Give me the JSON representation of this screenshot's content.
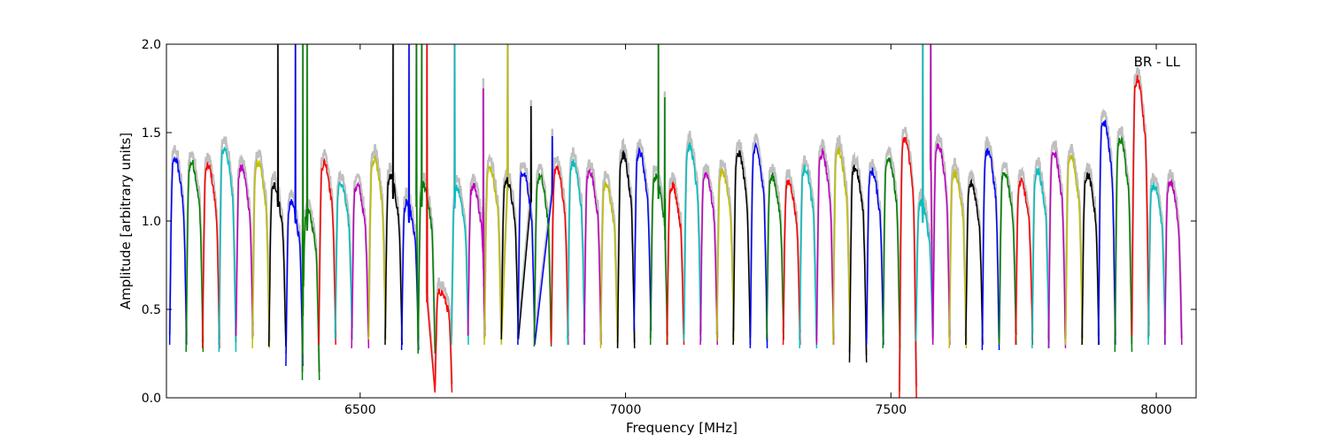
{
  "chart_data": {
    "type": "line",
    "annotation": "BR - LL",
    "xlabel": "Frequency [MHz]",
    "ylabel": "Amplitude [arbitrary units]",
    "xlim": [
      6135,
      8075
    ],
    "ylim": [
      0,
      2.0
    ],
    "xticks": [
      6500,
      7000,
      7500,
      8000
    ],
    "xtick_labels": [
      "6500",
      "7000",
      "7500",
      "8000"
    ],
    "yticks": [
      0.0,
      0.5,
      1.0,
      1.5,
      2.0
    ],
    "ytick_labels": [
      "0.0",
      "0.5",
      "1.0",
      "1.5",
      "2.0"
    ],
    "grid": false,
    "background_series_color": "#bfbfbf",
    "color_cycle": [
      "#0000ff",
      "#008000",
      "#ff0000",
      "#00bfbf",
      "#bf00bf",
      "#bfbf00",
      "#000000"
    ],
    "band_width_mhz": 32,
    "band_centers_mhz": [
      6157,
      6188,
      6219,
      6250,
      6282,
      6313,
      6344,
      6376,
      6407,
      6438,
      6469,
      6500,
      6532,
      6563,
      6594,
      6625,
      6657,
      6688,
      6719,
      6750,
      6782,
      6813,
      6844,
      6876,
      6907,
      6938,
      6969,
      7001,
      7032,
      7063,
      7094,
      7126,
      7157,
      7188,
      7219,
      7251,
      7282,
      7313,
      7344,
      7376,
      7407,
      7438,
      7470,
      7501,
      7532,
      7563,
      7595,
      7626,
      7657,
      7688,
      7720,
      7751,
      7782,
      7813,
      7845,
      7876,
      7907,
      7938,
      7970,
      8001,
      8032
    ],
    "band_peaks": [
      1.35,
      1.33,
      1.31,
      1.41,
      1.3,
      1.33,
      1.2,
      1.1,
      1.05,
      1.33,
      1.21,
      1.2,
      1.35,
      1.25,
      1.1,
      1.2,
      0.6,
      1.19,
      1.2,
      1.3,
      1.23,
      1.28,
      1.25,
      1.3,
      1.33,
      1.28,
      1.2,
      1.37,
      1.39,
      1.25,
      1.2,
      1.42,
      1.27,
      1.28,
      1.38,
      1.41,
      1.25,
      1.22,
      1.3,
      1.38,
      1.4,
      1.3,
      1.28,
      1.36,
      1.46,
      1.1,
      1.43,
      1.27,
      1.21,
      1.4,
      1.27,
      1.22,
      1.28,
      1.38,
      1.36,
      1.26,
      1.56,
      1.46,
      1.8,
      1.2,
      1.22
    ],
    "band_mins": [
      0.3,
      0.26,
      0.28,
      0.26,
      0.35,
      0.28,
      0.29,
      0.18,
      0.1,
      0.3,
      0.33,
      0.28,
      0.33,
      0.3,
      0.27,
      0.25,
      0.03,
      0.3,
      0.35,
      0.3,
      0.33,
      0.3,
      0.29,
      0.3,
      0.3,
      0.3,
      0.28,
      0.28,
      0.38,
      0.3,
      0.3,
      0.32,
      0.3,
      0.32,
      0.3,
      0.28,
      0.33,
      0.3,
      0.28,
      0.3,
      0.3,
      0.2,
      0.3,
      0.28,
      0.0,
      0.32,
      0.3,
      0.28,
      0.3,
      0.27,
      0.3,
      0.3,
      0.28,
      0.28,
      0.3,
      0.3,
      0.3,
      0.26,
      0.35,
      0.3,
      0.3
    ],
    "spikes": [
      {
        "x": 6345,
        "y": 2.0,
        "band": 6
      },
      {
        "x": 6378,
        "y": 2.0,
        "band": 7
      },
      {
        "x": 6392,
        "y": 2.0,
        "band": 8
      },
      {
        "x": 6400,
        "y": 2.0,
        "band": 8
      },
      {
        "x": 6562,
        "y": 2.0,
        "band": 13
      },
      {
        "x": 6592,
        "y": 2.0,
        "band": 14
      },
      {
        "x": 6606,
        "y": 2.0,
        "band": 15
      },
      {
        "x": 6616,
        "y": 2.0,
        "band": 15
      },
      {
        "x": 6626,
        "y": 2.0,
        "band": 16
      },
      {
        "x": 6678,
        "y": 2.0,
        "band": 17
      },
      {
        "x": 6732,
        "y": 1.75,
        "band": 18
      },
      {
        "x": 6778,
        "y": 2.0,
        "band": 19
      },
      {
        "x": 6822,
        "y": 1.65,
        "band": 20
      },
      {
        "x": 6862,
        "y": 1.48,
        "band": 21
      },
      {
        "x": 7062,
        "y": 2.0,
        "band": 29
      },
      {
        "x": 7074,
        "y": 1.7,
        "band": 29
      },
      {
        "x": 7560,
        "y": 2.0,
        "band": 45
      },
      {
        "x": 7575,
        "y": 2.0,
        "band": 46
      }
    ]
  }
}
